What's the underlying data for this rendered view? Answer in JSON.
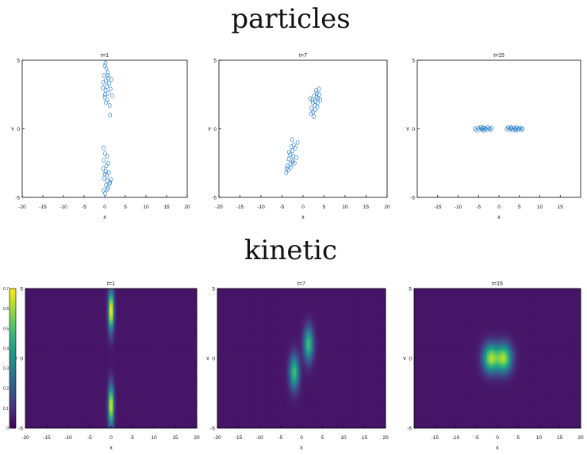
{
  "titles": {
    "particles": "particles",
    "kinetic": "kinetic"
  },
  "colors": {
    "marker": "#2c7fc9",
    "heat_bg": "#2a1e6e",
    "axis": "#000000"
  },
  "particle_panels": [
    {
      "title": "t=1",
      "xlabel": "x",
      "ylabel": "v",
      "xlim": [
        -20,
        20
      ],
      "ylim": [
        -5,
        5
      ],
      "xticks": [
        "-20",
        "-15",
        "-10",
        "-5",
        "0",
        "5",
        "10",
        "15",
        "20"
      ],
      "yticks": [
        "-5",
        "0",
        "5"
      ],
      "points": [
        [
          0.0,
          4.6
        ],
        [
          0.4,
          4.4
        ],
        [
          0.8,
          4.1
        ],
        [
          -0.2,
          3.9
        ],
        [
          0.9,
          3.7
        ],
        [
          0.3,
          3.5
        ],
        [
          1.1,
          3.3
        ],
        [
          0.5,
          3.1
        ],
        [
          -0.5,
          3.0
        ],
        [
          0.2,
          2.8
        ],
        [
          0.8,
          2.6
        ],
        [
          1.8,
          2.4
        ],
        [
          0.0,
          2.3
        ],
        [
          0.6,
          2.1
        ],
        [
          0.3,
          1.9
        ],
        [
          1.2,
          1.7
        ],
        [
          -0.3,
          3.4
        ],
        [
          0.7,
          3.9
        ],
        [
          0.1,
          2.5
        ],
        [
          1.4,
          2.9
        ],
        [
          1.3,
          1.0
        ],
        [
          1.6,
          3.6
        ],
        [
          0.2,
          4.8
        ],
        [
          -0.3,
          -1.4
        ],
        [
          0.1,
          -1.8
        ],
        [
          0.6,
          -2.0
        ],
        [
          -0.2,
          -2.3
        ],
        [
          0.9,
          -2.5
        ],
        [
          0.4,
          -2.7
        ],
        [
          -0.4,
          -2.9
        ],
        [
          0.2,
          -3.1
        ],
        [
          1.0,
          -3.2
        ],
        [
          0.5,
          -3.4
        ],
        [
          -0.1,
          -3.6
        ],
        [
          0.7,
          -3.8
        ],
        [
          1.3,
          -3.9
        ],
        [
          0.3,
          -4.1
        ],
        [
          0.8,
          -4.3
        ],
        [
          -0.3,
          -4.5
        ],
        [
          0.1,
          -4.7
        ],
        [
          0.6,
          -4.4
        ],
        [
          1.2,
          -4.0
        ],
        [
          0.0,
          -3.3
        ],
        [
          1.5,
          -3.7
        ]
      ]
    },
    {
      "title": "t=7",
      "xlabel": "x",
      "ylabel": "v",
      "xlim": [
        -20,
        20
      ],
      "ylim": [
        -5,
        5
      ],
      "xticks": [
        "-20",
        "-15",
        "-10",
        "-5",
        "0",
        "5",
        "10",
        "15",
        "20"
      ],
      "yticks": [
        "-5",
        "0",
        "5"
      ],
      "points": [
        [
          2.2,
          2.1
        ],
        [
          2.6,
          2.4
        ],
        [
          3.0,
          2.0
        ],
        [
          3.3,
          2.6
        ],
        [
          3.6,
          2.2
        ],
        [
          2.8,
          1.7
        ],
        [
          2.0,
          1.5
        ],
        [
          3.9,
          2.5
        ],
        [
          3.1,
          2.8
        ],
        [
          2.4,
          1.2
        ],
        [
          3.5,
          1.9
        ],
        [
          1.7,
          2.2
        ],
        [
          2.9,
          1.4
        ],
        [
          3.8,
          2.9
        ],
        [
          2.3,
          1.9
        ],
        [
          3.2,
          2.3
        ],
        [
          1.9,
          1.1
        ],
        [
          4.1,
          2.1
        ],
        [
          2.6,
          0.9
        ],
        [
          3.4,
          1.6
        ],
        [
          -2.3,
          -2.0
        ],
        [
          -2.7,
          -2.3
        ],
        [
          -3.1,
          -1.9
        ],
        [
          -2.0,
          -2.5
        ],
        [
          -3.4,
          -2.2
        ],
        [
          -2.5,
          -1.6
        ],
        [
          -1.8,
          -1.4
        ],
        [
          -3.7,
          -2.7
        ],
        [
          -2.9,
          -2.8
        ],
        [
          -2.2,
          -1.2
        ],
        [
          -3.3,
          -1.7
        ],
        [
          -1.6,
          -2.1
        ],
        [
          -2.8,
          -1.3
        ],
        [
          -3.9,
          -2.9
        ],
        [
          -2.4,
          -2.4
        ],
        [
          -3.0,
          -2.6
        ],
        [
          -1.3,
          -1.0
        ],
        [
          -4.0,
          -3.2
        ],
        [
          -2.6,
          -0.8
        ],
        [
          -3.5,
          -3.0
        ]
      ]
    },
    {
      "title": "t=15",
      "xlabel": "x",
      "ylabel": "v",
      "xlim": [
        -20,
        20
      ],
      "ylim": [
        -5,
        5
      ],
      "xticks": [
        "-15",
        "-10",
        "-5",
        "0",
        "5",
        "10",
        "15"
      ],
      "yticks": [
        "-5",
        "0",
        "5"
      ],
      "points": [
        [
          -5.9,
          0.0
        ],
        [
          -5.5,
          -0.1
        ],
        [
          -5.1,
          0.05
        ],
        [
          -4.8,
          -0.05
        ],
        [
          -4.5,
          0.1
        ],
        [
          -4.2,
          0.0
        ],
        [
          -3.9,
          -0.1
        ],
        [
          -3.6,
          0.05
        ],
        [
          -3.3,
          0.0
        ],
        [
          -3.0,
          -0.05
        ],
        [
          -2.7,
          0.1
        ],
        [
          -2.4,
          0.0
        ],
        [
          -2.1,
          -0.05
        ],
        [
          -1.8,
          0.05
        ],
        [
          -4.0,
          0.08
        ],
        [
          -3.7,
          -0.08
        ],
        [
          1.9,
          0.0
        ],
        [
          2.2,
          0.1
        ],
        [
          2.5,
          -0.05
        ],
        [
          2.8,
          0.05
        ],
        [
          3.1,
          0.0
        ],
        [
          3.4,
          -0.1
        ],
        [
          3.7,
          0.05
        ],
        [
          4.0,
          0.0
        ],
        [
          4.3,
          0.1
        ],
        [
          4.6,
          -0.05
        ],
        [
          4.9,
          0.0
        ],
        [
          5.2,
          0.05
        ],
        [
          5.5,
          -0.05
        ],
        [
          5.8,
          0.0
        ],
        [
          3.0,
          0.09
        ],
        [
          4.1,
          -0.09
        ]
      ]
    }
  ],
  "kinetic_panels": [
    {
      "title": "t=1",
      "xlabel": "x",
      "ylabel": "v",
      "xlim": [
        -20,
        20
      ],
      "ylim": [
        -5,
        5
      ],
      "xticks": [
        "-20",
        "-15",
        "-10",
        "-5",
        "0",
        "5",
        "10",
        "15",
        "20"
      ],
      "yticks": [
        "-5",
        "0",
        "5"
      ],
      "blobs": [
        {
          "x": 0,
          "v": 3.4,
          "sx": 0.45,
          "sv": 1.0,
          "peak": 0.7
        },
        {
          "x": 0,
          "v": -3.4,
          "sx": 0.45,
          "sv": 1.0,
          "peak": 0.65
        }
      ]
    },
    {
      "title": "t=7",
      "xlabel": "x",
      "ylabel": "v",
      "xlim": [
        -20,
        20
      ],
      "ylim": [
        -5,
        5
      ],
      "xticks": [
        "-20",
        "-15",
        "-10",
        "-5",
        "0",
        "5",
        "10",
        "15",
        "20"
      ],
      "yticks": [
        "-5",
        "0",
        "5"
      ],
      "blobs": [
        {
          "x": 1.7,
          "v": 1.0,
          "sx": 0.8,
          "sv": 0.85,
          "peak": 0.45
        },
        {
          "x": -1.7,
          "v": -1.0,
          "sx": 0.8,
          "sv": 0.85,
          "peak": 0.45
        }
      ]
    },
    {
      "title": "t=15",
      "xlabel": "x",
      "ylabel": "v",
      "xlim": [
        -20,
        20
      ],
      "ylim": [
        -5,
        5
      ],
      "xticks": [
        "-15",
        "-10",
        "-5",
        "0",
        "5",
        "10",
        "15",
        "20"
      ],
      "yticks": [
        "-5",
        "0",
        "5"
      ],
      "blobs": [
        {
          "x": -1.6,
          "v": 0.0,
          "sx": 1.3,
          "sv": 0.7,
          "peak": 0.55
        },
        {
          "x": 1.6,
          "v": 0.0,
          "sx": 1.3,
          "sv": 0.7,
          "peak": 0.55
        }
      ]
    }
  ],
  "colorbar": {
    "min": 0,
    "max": 0.7,
    "ticks": [
      "0",
      "0.1",
      "0.2",
      "0.3",
      "0.4",
      "0.5",
      "0.6",
      "0.7"
    ]
  },
  "chart_data": [
    {
      "type": "scatter",
      "title": "t=1",
      "xlabel": "x",
      "ylabel": "v",
      "xlim": [
        -20,
        20
      ],
      "ylim": [
        -5,
        5
      ],
      "series": [
        {
          "values_ref": "particle_panels.0.points"
        }
      ]
    },
    {
      "type": "scatter",
      "title": "t=7",
      "xlabel": "x",
      "ylabel": "v",
      "xlim": [
        -20,
        20
      ],
      "ylim": [
        -5,
        5
      ],
      "series": [
        {
          "values_ref": "particle_panels.1.points"
        }
      ]
    },
    {
      "type": "scatter",
      "title": "t=15",
      "xlabel": "x",
      "ylabel": "v",
      "xlim": [
        -20,
        20
      ],
      "ylim": [
        -5,
        5
      ],
      "series": [
        {
          "values_ref": "particle_panels.2.points"
        }
      ]
    },
    {
      "type": "heatmap",
      "title": "t=1",
      "xlabel": "x",
      "ylabel": "v",
      "xlim": [
        -20,
        20
      ],
      "ylim": [
        -5,
        5
      ],
      "colorbar_range": [
        0,
        0.7
      ]
    },
    {
      "type": "heatmap",
      "title": "t=7",
      "xlabel": "x",
      "ylabel": "v",
      "xlim": [
        -20,
        20
      ],
      "ylim": [
        -5,
        5
      ]
    },
    {
      "type": "heatmap",
      "title": "t=15",
      "xlabel": "x",
      "ylabel": "v",
      "xlim": [
        -20,
        20
      ],
      "ylim": [
        -5,
        5
      ]
    }
  ]
}
